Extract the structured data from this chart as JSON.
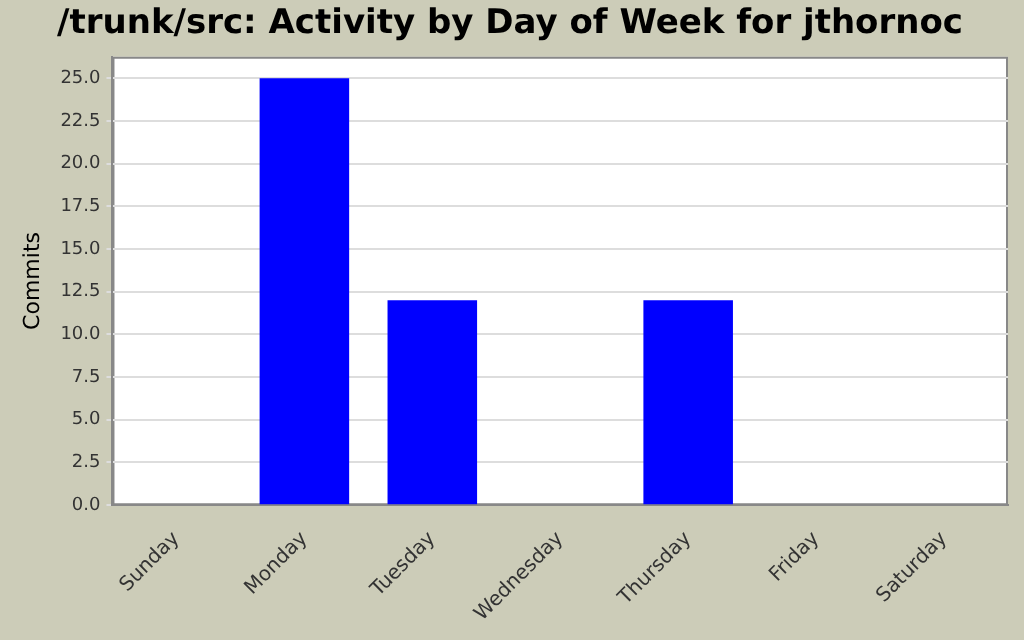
{
  "chart_data": {
    "type": "bar",
    "title": "/trunk/src: Activity by Day of Week for jthornoc",
    "ylabel": "Commits",
    "categories": [
      "Sunday",
      "Monday",
      "Tuesday",
      "Wednesday",
      "Thursday",
      "Friday",
      "Saturday"
    ],
    "values": [
      0,
      25,
      12,
      0,
      12,
      0,
      0
    ],
    "color": "#0000ff",
    "ylim": [
      0,
      26.25
    ],
    "yticks": [
      {
        "value": 0,
        "label": "0.0"
      },
      {
        "value": 2.5,
        "label": "2.5"
      },
      {
        "value": 5,
        "label": "5.0"
      },
      {
        "value": 7.5,
        "label": "7.5"
      },
      {
        "value": 10,
        "label": "10.0"
      },
      {
        "value": 12.5,
        "label": "12.5"
      },
      {
        "value": 15,
        "label": "15.0"
      },
      {
        "value": 17.5,
        "label": "17.5"
      },
      {
        "value": 20,
        "label": "20.0"
      },
      {
        "value": 22.5,
        "label": "22.5"
      },
      {
        "value": 25,
        "label": "25.0"
      }
    ],
    "grid": "y"
  }
}
